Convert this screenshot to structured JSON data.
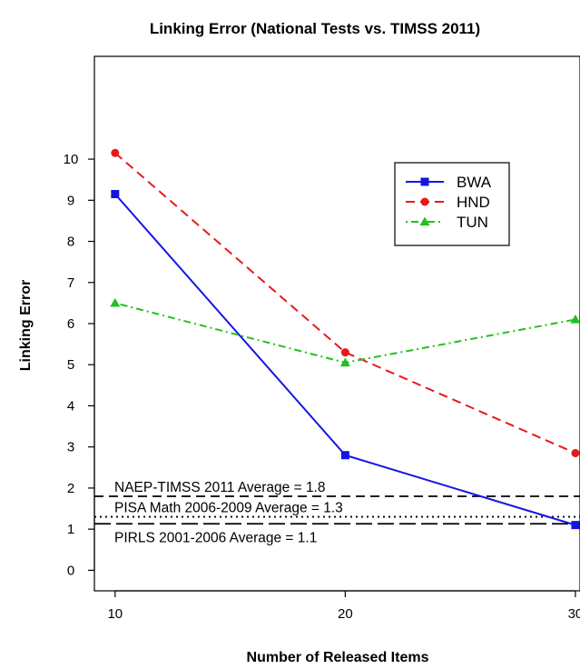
{
  "chart_data": {
    "type": "line",
    "title": "Linking Error (National Tests vs. TIMSS 2011)",
    "xlabel": "Number of Released Items",
    "ylabel": "Linking Error",
    "x": [
      10,
      20,
      30
    ],
    "xticks": [
      10,
      20,
      30
    ],
    "xtick_labels": [
      "10",
      "20",
      "30"
    ],
    "yticks": [
      0,
      1,
      2,
      3,
      4,
      5,
      6,
      7,
      8,
      9,
      10
    ],
    "ytick_labels": [
      "0",
      "1",
      "2",
      "3",
      "4",
      "5",
      "6",
      "7",
      "8",
      "9",
      "10"
    ],
    "xlim": [
      9.1,
      30.2
    ],
    "ylim": [
      -0.5,
      12.5
    ],
    "grid": false,
    "legend_position": "top-right",
    "series": [
      {
        "name": "BWA",
        "values": [
          9.15,
          2.8,
          1.1
        ],
        "color": "#1515e6",
        "line_style": "solid",
        "marker": "square"
      },
      {
        "name": "HND",
        "values": [
          10.15,
          5.3,
          2.85
        ],
        "color": "#e61a1a",
        "line_style": "dashed",
        "marker": "circle"
      },
      {
        "name": "TUN",
        "values": [
          6.5,
          5.05,
          6.1
        ],
        "color": "#1fc21f",
        "line_style": "dotdash",
        "marker": "triangle"
      }
    ],
    "reference_lines": [
      {
        "label": "NAEP-TIMSS 2011 Average = 1.8",
        "value": 1.8,
        "line_style": "dashed"
      },
      {
        "label": "PISA Math 2006-2009 Average = 1.3",
        "value": 1.3,
        "line_style": "dotted"
      },
      {
        "label": "PIRLS 2001-2006 Average = 1.1",
        "value": 1.13,
        "line_style": "longdash"
      }
    ]
  }
}
